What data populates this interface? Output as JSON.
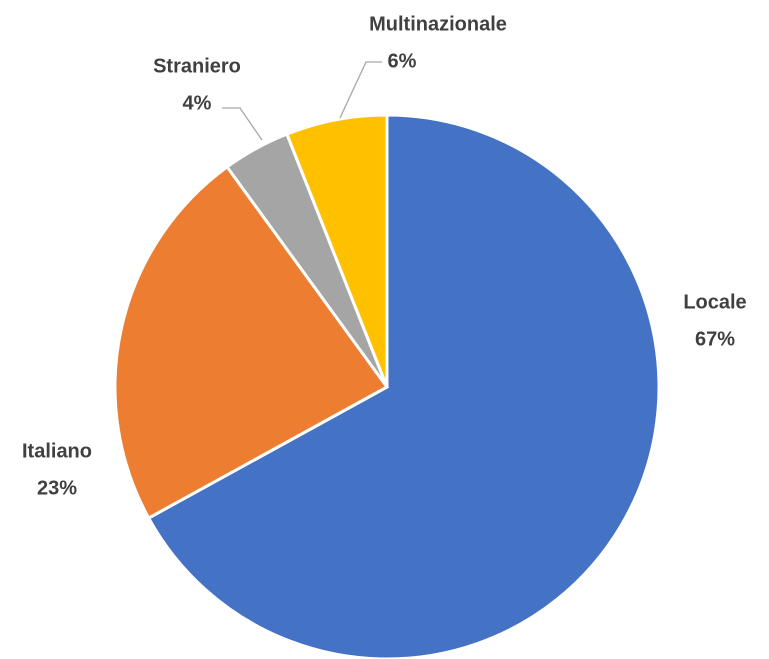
{
  "chart_data": {
    "type": "pie",
    "categories": [
      "Locale",
      "Italiano",
      "Straniero",
      "Multinazionale"
    ],
    "values": [
      67,
      23,
      4,
      6
    ],
    "value_labels": [
      "67%",
      "23%",
      "4%",
      "6%"
    ],
    "colors": [
      "#4472c4",
      "#ed7d31",
      "#a5a5a5",
      "#ffc000"
    ],
    "start_angle": 0,
    "direction": "clockwise"
  }
}
